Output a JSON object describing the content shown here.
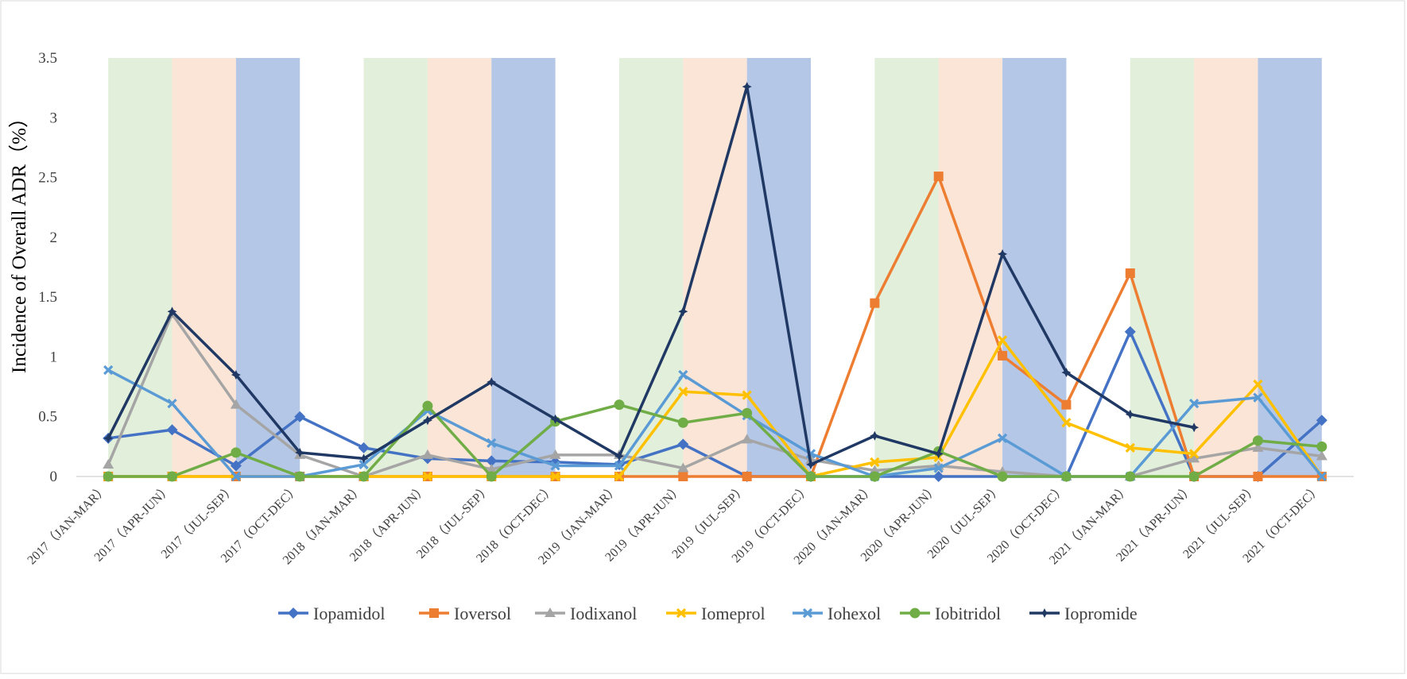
{
  "chart_data": {
    "type": "line",
    "title": "",
    "xlabel": "",
    "ylabel": "Incidence of Overall ADR（%）",
    "ylim": [
      0,
      3.5
    ],
    "yticks": [
      "0",
      "0.5",
      "1",
      "1.5",
      "2",
      "2.5",
      "3",
      "3.5"
    ],
    "grid": false,
    "legend": "bottom",
    "categories": [
      "2017（JAN-MAR）",
      "2017（APR-JUN）",
      "2017（JUL-SEP）",
      "2017（OCT-DEC）",
      "2018（JAN-MAR）",
      "2018（APR-JUN）",
      "2018（JUL-SEP）",
      "2018（OCT-DEC）",
      "2019（JAN-MAR）",
      "2019（APR-JUN）",
      "2019（JUL-SEP）",
      "2019（OCT-DEC）",
      "2020（JAN-MAR）",
      "2020（APR-JUN）",
      "2020（JUL-SEP）",
      "2020（OCT-DEC）",
      "2021（JAN-MAR）",
      "2021（APR-JUN）",
      "2021（JUL-SEP）",
      "2021（OCT-DEC）"
    ],
    "background_bands": [
      {
        "from": 0.5,
        "to": 1.5,
        "color": "#e2efda"
      },
      {
        "from": 1.5,
        "to": 2.5,
        "color": "#fbe5d6"
      },
      {
        "from": 2.5,
        "to": 3.5,
        "color": "#b4c7e7"
      },
      {
        "from": 4.5,
        "to": 5.5,
        "color": "#e2efda"
      },
      {
        "from": 5.5,
        "to": 6.5,
        "color": "#fbe5d6"
      },
      {
        "from": 6.5,
        "to": 7.5,
        "color": "#b4c7e7"
      },
      {
        "from": 8.5,
        "to": 9.5,
        "color": "#e2efda"
      },
      {
        "from": 9.5,
        "to": 10.5,
        "color": "#fbe5d6"
      },
      {
        "from": 10.5,
        "to": 11.5,
        "color": "#b4c7e7"
      },
      {
        "from": 12.5,
        "to": 13.5,
        "color": "#e2efda"
      },
      {
        "from": 13.5,
        "to": 14.5,
        "color": "#fbe5d6"
      },
      {
        "from": 14.5,
        "to": 15.5,
        "color": "#b4c7e7"
      },
      {
        "from": 16.5,
        "to": 17.5,
        "color": "#e2efda"
      },
      {
        "from": 17.5,
        "to": 18.5,
        "color": "#fbe5d6"
      },
      {
        "from": 18.5,
        "to": 19.5,
        "color": "#b4c7e7"
      }
    ],
    "series": [
      {
        "name": "Iopamidol",
        "color": "#4472c4",
        "marker": "diamond",
        "values": [
          0.32,
          0.39,
          0.09,
          0.5,
          0.24,
          0.15,
          0.13,
          0.12,
          0.1,
          0.27,
          0,
          0,
          0,
          0,
          0,
          0,
          1.21,
          0,
          0,
          0.47
        ]
      },
      {
        "name": "Ioversol",
        "color": "#ed7d31",
        "marker": "square",
        "values": [
          0,
          0,
          0,
          0,
          0,
          0,
          0,
          0,
          0,
          0,
          0,
          0,
          1.45,
          2.51,
          1.01,
          0.6,
          1.7,
          0,
          0,
          0
        ]
      },
      {
        "name": "Iodixanol",
        "color": "#a5a5a5",
        "marker": "triangle",
        "values": [
          0.1,
          1.36,
          0.6,
          0.18,
          0,
          0.18,
          0.06,
          0.18,
          0.18,
          0.07,
          0.31,
          0.14,
          0.05,
          0.09,
          0.04,
          0,
          0,
          0.15,
          0.24,
          0.17
        ]
      },
      {
        "name": "Iomeprol",
        "color": "#ffc000",
        "marker": "x",
        "values": [
          0,
          0,
          0,
          0,
          0,
          0,
          0,
          0,
          0,
          0.71,
          0.68,
          0,
          0.12,
          0.16,
          1.14,
          0.45,
          0.24,
          0.19,
          0.77,
          0
        ]
      },
      {
        "name": "Iohexol",
        "color": "#5b9bd5",
        "marker": "x",
        "values": [
          0.89,
          0.61,
          0,
          0,
          0.1,
          0.55,
          0.28,
          0.09,
          0.09,
          0.85,
          0.51,
          0.19,
          0,
          0.07,
          0.32,
          0,
          0,
          0.61,
          0.66,
          0
        ]
      },
      {
        "name": "Iobitridol",
        "color": "#70ad47",
        "marker": "circle",
        "values": [
          0,
          0,
          0.2,
          0,
          0,
          0.59,
          0,
          0.46,
          0.6,
          0.45,
          0.53,
          0,
          0,
          0.21,
          0,
          0,
          0,
          0,
          0.3,
          0.25
        ]
      },
      {
        "name": "Iopromide",
        "color": "#203864",
        "marker": "star",
        "values": [
          0.32,
          1.38,
          0.85,
          0.2,
          0.15,
          0.47,
          0.79,
          0.48,
          0.17,
          1.38,
          3.26,
          0.1,
          0.34,
          0.19,
          1.86,
          0.87,
          0.52,
          0.41,
          null,
          null
        ]
      }
    ]
  }
}
